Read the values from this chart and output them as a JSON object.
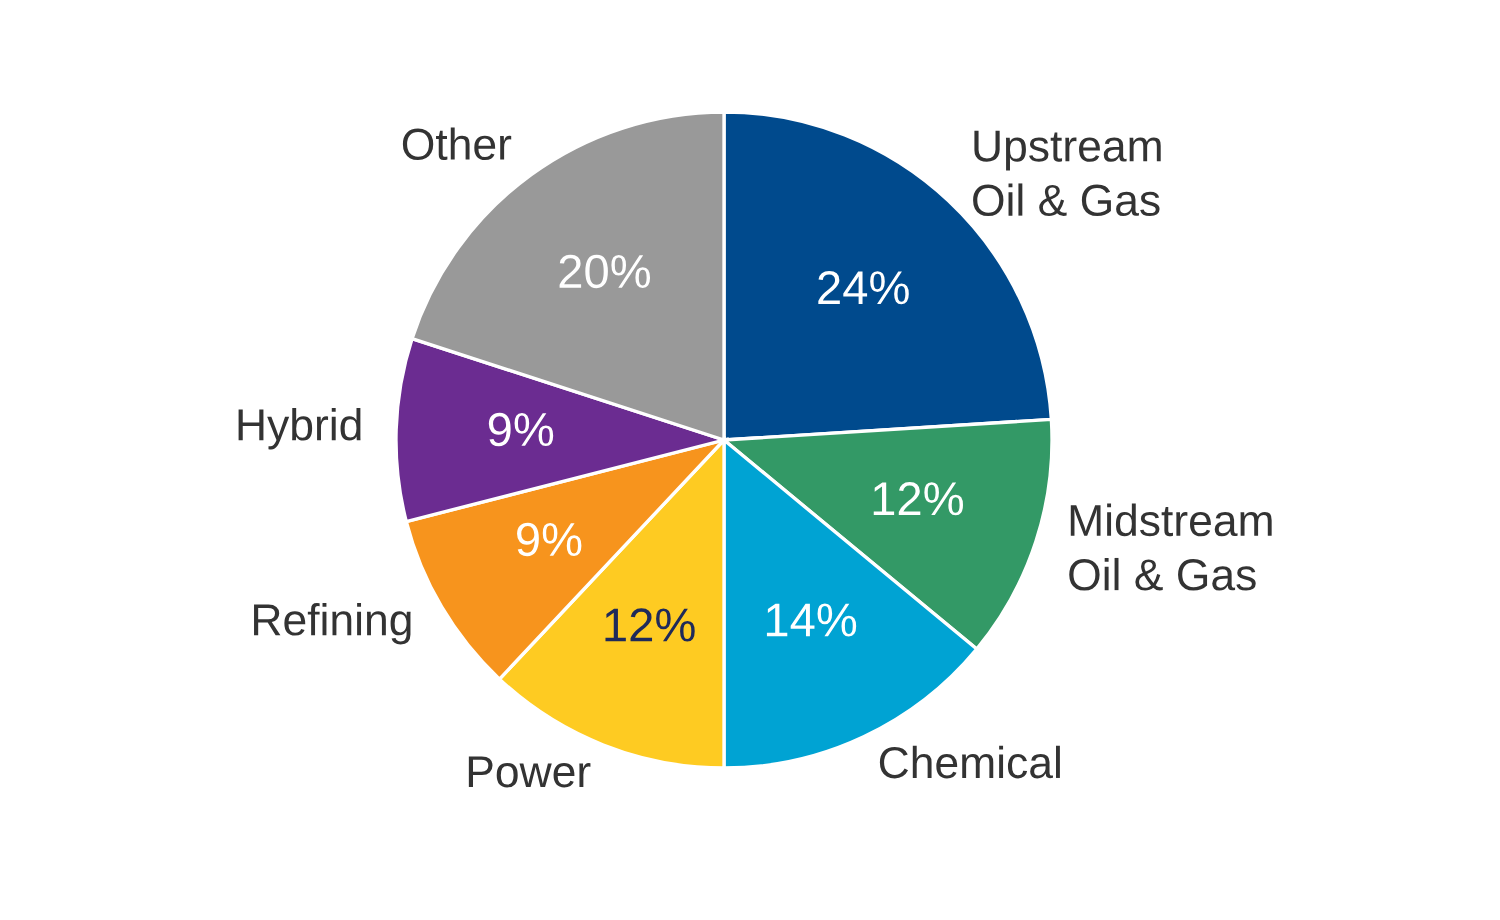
{
  "chart_data": {
    "type": "pie",
    "categories": [
      "Upstream\nOil & Gas",
      "Midstream\nOil & Gas",
      "Chemical",
      "Power",
      "Refining",
      "Hybrid",
      "Other"
    ],
    "values": [
      24,
      12,
      14,
      12,
      9,
      9,
      20
    ],
    "colors": [
      "#004a8d",
      "#339966",
      "#00a3d3",
      "#fecb22",
      "#f7941d",
      "#6b2c91",
      "#999999"
    ],
    "value_labels": [
      "24%",
      "12%",
      "14%",
      "12%",
      "9%",
      "9%",
      "20%"
    ]
  }
}
